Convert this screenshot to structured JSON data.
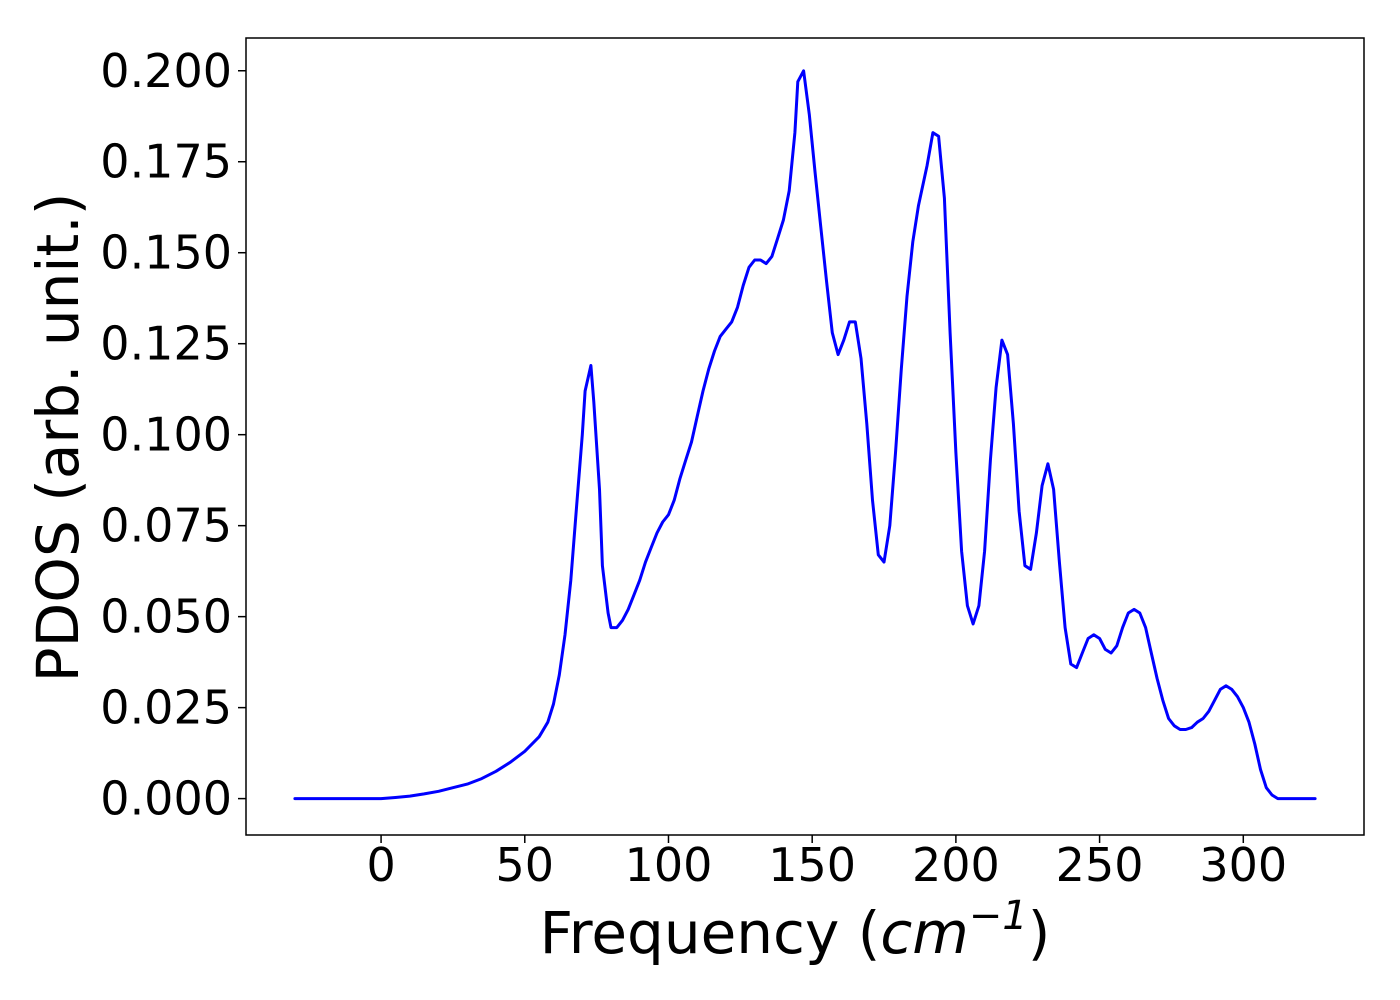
{
  "chart_data": {
    "type": "line",
    "title": "",
    "xlabel_prefix": "Frequency (",
    "xlabel_unit": "cm",
    "xlabel_exponent": "−1",
    "xlabel_suffix": ")",
    "ylabel": "PDOS (arb. unit.)",
    "xlim": [
      -47,
      342
    ],
    "ylim": [
      -0.01,
      0.209
    ],
    "x_ticks": [
      0,
      50,
      100,
      150,
      200,
      250,
      300
    ],
    "x_tick_labels": [
      "0",
      "50",
      "100",
      "150",
      "200",
      "250",
      "300"
    ],
    "y_ticks": [
      0.0,
      0.025,
      0.05,
      0.075,
      0.1,
      0.125,
      0.15,
      0.175,
      0.2
    ],
    "y_tick_labels": [
      "0.000",
      "0.025",
      "0.050",
      "0.075",
      "0.100",
      "0.125",
      "0.150",
      "0.175",
      "0.200"
    ],
    "grid": false,
    "series": [
      {
        "color": "#0000ff",
        "points": [
          [
            -30,
            0.0
          ],
          [
            0,
            0.0
          ],
          [
            5,
            0.0003
          ],
          [
            10,
            0.0007
          ],
          [
            15,
            0.0013
          ],
          [
            20,
            0.002
          ],
          [
            25,
            0.003
          ],
          [
            30,
            0.004
          ],
          [
            35,
            0.0055
          ],
          [
            40,
            0.0075
          ],
          [
            45,
            0.01
          ],
          [
            50,
            0.013
          ],
          [
            55,
            0.017
          ],
          [
            58,
            0.021
          ],
          [
            60,
            0.026
          ],
          [
            62,
            0.034
          ],
          [
            64,
            0.045
          ],
          [
            66,
            0.06
          ],
          [
            68,
            0.08
          ],
          [
            70,
            0.1
          ],
          [
            71,
            0.112
          ],
          [
            73,
            0.119
          ],
          [
            74,
            0.109
          ],
          [
            76,
            0.085
          ],
          [
            77,
            0.064
          ],
          [
            79,
            0.051
          ],
          [
            80,
            0.047
          ],
          [
            82,
            0.047
          ],
          [
            84,
            0.049
          ],
          [
            86,
            0.052
          ],
          [
            88,
            0.056
          ],
          [
            90,
            0.06
          ],
          [
            92,
            0.065
          ],
          [
            94,
            0.069
          ],
          [
            96,
            0.073
          ],
          [
            98,
            0.076
          ],
          [
            100,
            0.078
          ],
          [
            102,
            0.082
          ],
          [
            104,
            0.088
          ],
          [
            106,
            0.093
          ],
          [
            108,
            0.098
          ],
          [
            110,
            0.105
          ],
          [
            112,
            0.112
          ],
          [
            114,
            0.118
          ],
          [
            116,
            0.123
          ],
          [
            118,
            0.127
          ],
          [
            120,
            0.129
          ],
          [
            122,
            0.131
          ],
          [
            124,
            0.135
          ],
          [
            126,
            0.141
          ],
          [
            128,
            0.146
          ],
          [
            130,
            0.148
          ],
          [
            132,
            0.148
          ],
          [
            134,
            0.147
          ],
          [
            136,
            0.149
          ],
          [
            138,
            0.154
          ],
          [
            140,
            0.159
          ],
          [
            142,
            0.167
          ],
          [
            144,
            0.183
          ],
          [
            145,
            0.197
          ],
          [
            147,
            0.2
          ],
          [
            149,
            0.188
          ],
          [
            151,
            0.172
          ],
          [
            153,
            0.157
          ],
          [
            155,
            0.142
          ],
          [
            157,
            0.128
          ],
          [
            159,
            0.122
          ],
          [
            161,
            0.126
          ],
          [
            163,
            0.131
          ],
          [
            165,
            0.131
          ],
          [
            167,
            0.121
          ],
          [
            169,
            0.103
          ],
          [
            171,
            0.082
          ],
          [
            173,
            0.067
          ],
          [
            175,
            0.065
          ],
          [
            177,
            0.075
          ],
          [
            179,
            0.095
          ],
          [
            181,
            0.118
          ],
          [
            183,
            0.138
          ],
          [
            185,
            0.153
          ],
          [
            187,
            0.163
          ],
          [
            190,
            0.174
          ],
          [
            192,
            0.183
          ],
          [
            194,
            0.182
          ],
          [
            196,
            0.165
          ],
          [
            198,
            0.128
          ],
          [
            200,
            0.095
          ],
          [
            202,
            0.068
          ],
          [
            204,
            0.053
          ],
          [
            206,
            0.048
          ],
          [
            208,
            0.053
          ],
          [
            210,
            0.068
          ],
          [
            212,
            0.093
          ],
          [
            214,
            0.113
          ],
          [
            216,
            0.126
          ],
          [
            218,
            0.122
          ],
          [
            220,
            0.103
          ],
          [
            222,
            0.079
          ],
          [
            224,
            0.064
          ],
          [
            226,
            0.063
          ],
          [
            228,
            0.073
          ],
          [
            230,
            0.086
          ],
          [
            232,
            0.092
          ],
          [
            234,
            0.085
          ],
          [
            236,
            0.065
          ],
          [
            238,
            0.047
          ],
          [
            240,
            0.037
          ],
          [
            242,
            0.036
          ],
          [
            244,
            0.04
          ],
          [
            246,
            0.044
          ],
          [
            248,
            0.045
          ],
          [
            250,
            0.044
          ],
          [
            252,
            0.041
          ],
          [
            254,
            0.04
          ],
          [
            256,
            0.042
          ],
          [
            258,
            0.047
          ],
          [
            260,
            0.051
          ],
          [
            262,
            0.052
          ],
          [
            264,
            0.051
          ],
          [
            266,
            0.047
          ],
          [
            268,
            0.04
          ],
          [
            270,
            0.033
          ],
          [
            272,
            0.027
          ],
          [
            274,
            0.022
          ],
          [
            276,
            0.02
          ],
          [
            278,
            0.019
          ],
          [
            280,
            0.019
          ],
          [
            282,
            0.0195
          ],
          [
            284,
            0.021
          ],
          [
            286,
            0.022
          ],
          [
            288,
            0.024
          ],
          [
            290,
            0.027
          ],
          [
            292,
            0.03
          ],
          [
            294,
            0.031
          ],
          [
            296,
            0.03
          ],
          [
            298,
            0.028
          ],
          [
            300,
            0.025
          ],
          [
            302,
            0.021
          ],
          [
            304,
            0.015
          ],
          [
            306,
            0.008
          ],
          [
            308,
            0.003
          ],
          [
            310,
            0.001
          ],
          [
            312,
            0.0
          ],
          [
            325,
            0.0
          ]
        ]
      }
    ]
  }
}
